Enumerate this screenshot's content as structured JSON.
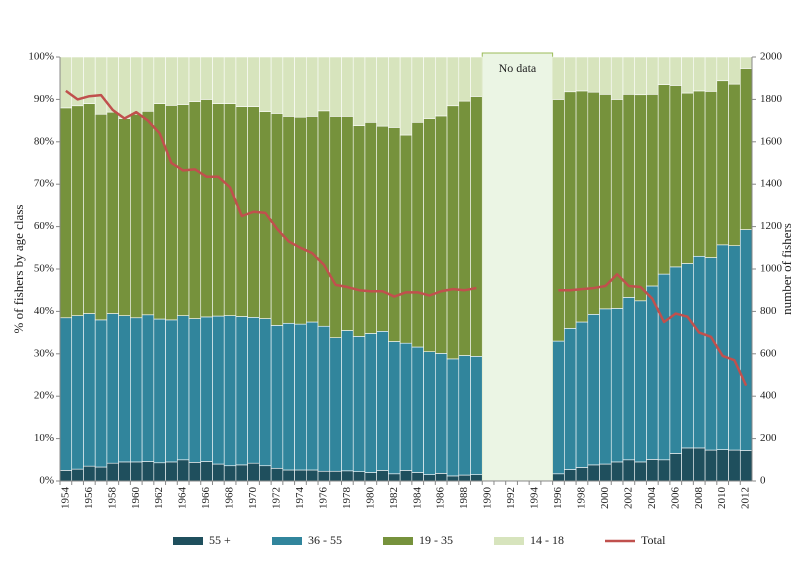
{
  "chart_data": {
    "type": "bar",
    "stacked": true,
    "annotation": "No data",
    "ylabel": "% of fishers by age class",
    "y2label": "number of fishers",
    "categories": [
      "1954",
      null,
      "1956",
      null,
      "1958",
      null,
      "1960",
      null,
      "1962",
      null,
      "1964",
      null,
      "1966",
      null,
      "1968",
      null,
      "1970",
      null,
      "1972",
      null,
      "1974",
      null,
      "1976",
      null,
      "1978",
      null,
      "1980",
      null,
      "1982",
      null,
      "1984",
      null,
      "1986",
      null,
      "1988",
      null,
      "1990",
      null,
      "1992",
      null,
      "1994",
      null,
      "1996",
      null,
      "1998",
      null,
      "2000",
      null,
      "2002",
      null,
      "2004",
      null,
      "2006",
      null,
      "2008",
      null,
      "2010",
      null,
      "2012"
    ],
    "series": [
      {
        "name": "55 +",
        "color": "#1f4f5d",
        "values": [
          2.5,
          2.8,
          3.5,
          3.3,
          4.2,
          4.5,
          4.5,
          4.6,
          4.3,
          4.5,
          5,
          4.4,
          4.6,
          4,
          3.6,
          3.8,
          4.2,
          3.6,
          3,
          2.6,
          2.6,
          2.6,
          2.3,
          2.3,
          2.4,
          2.2,
          2,
          2.5,
          1.7,
          2.5,
          2,
          1.5,
          1.8,
          1.2,
          1.4,
          1.5,
          null,
          null,
          null,
          null,
          null,
          null,
          1.7,
          2.7,
          3.2,
          3.8,
          4,
          4.5,
          5,
          4.5,
          5.1,
          5,
          6.5,
          7.8,
          7.8,
          7.3,
          7.4,
          7.3,
          7.2
        ]
      },
      {
        "name": "36 - 55",
        "color": "#31859c",
        "values": [
          36,
          36.2,
          36,
          34.7,
          35.3,
          34.5,
          34,
          34.6,
          33.9,
          33.5,
          34,
          33.9,
          34.1,
          34.9,
          35.4,
          35,
          34.4,
          34.7,
          33.7,
          34.6,
          34.4,
          34.9,
          34.2,
          31.5,
          33.1,
          31.9,
          32.8,
          32.8,
          31.2,
          30,
          29.6,
          29,
          28.3,
          27.6,
          28.2,
          27.9,
          null,
          null,
          null,
          null,
          null,
          null,
          31.3,
          33.3,
          34.3,
          35.5,
          36.6,
          36.2,
          38.3,
          38,
          40.9,
          43.8,
          44,
          43.5,
          45.2,
          45.4,
          48.3,
          48.2,
          52.1
        ]
      },
      {
        "name": "19 - 35",
        "color": "#76923c",
        "values": [
          49.5,
          49.5,
          49.5,
          48.5,
          47.5,
          46.5,
          48,
          48,
          50.8,
          50.6,
          49.8,
          51.2,
          51.3,
          50.1,
          50,
          49.5,
          49.7,
          48.8,
          50,
          48.8,
          48.8,
          48.5,
          50.8,
          52.2,
          50.5,
          49.7,
          49.8,
          48.4,
          50.5,
          49.1,
          53,
          55,
          56,
          59.7,
          60,
          61.3,
          null,
          null,
          null,
          null,
          null,
          null,
          57,
          55.8,
          54.5,
          52.4,
          50.6,
          49.3,
          47.9,
          48.6,
          45.2,
          44.7,
          42.8,
          40.2,
          39,
          39.2,
          38.7,
          38.1,
          38
        ]
      },
      {
        "name": "14 - 18",
        "color": "#d7e4bd",
        "values": [
          12,
          11.5,
          11,
          13.5,
          13,
          14.5,
          13.5,
          12.8,
          11,
          11.4,
          11.2,
          10.5,
          10,
          11,
          11,
          11.7,
          11.7,
          12.9,
          13.3,
          14,
          14.2,
          14,
          12.7,
          14,
          14,
          16.2,
          15.4,
          16.3,
          16.6,
          18.4,
          15.4,
          14.5,
          13.9,
          11.5,
          10.4,
          9.3,
          null,
          null,
          null,
          null,
          null,
          null,
          10,
          8.2,
          8,
          8.3,
          8.8,
          10,
          8.8,
          8.9,
          8.8,
          6.5,
          6.7,
          8.5,
          8,
          8.1,
          5.6,
          6.4,
          2.7
        ]
      },
      {
        "name": "Total",
        "type": "line",
        "axis": "y2",
        "color": "#c0504d",
        "values": [
          1840,
          1800,
          1815,
          1820,
          1750,
          1710,
          1740,
          1700,
          1640,
          1500,
          1465,
          1470,
          1435,
          1435,
          1385,
          1250,
          1270,
          1265,
          1190,
          1130,
          1100,
          1075,
          1020,
          925,
          915,
          900,
          895,
          895,
          870,
          890,
          890,
          875,
          895,
          905,
          900,
          910,
          null,
          null,
          null,
          null,
          null,
          null,
          900,
          900,
          905,
          910,
          920,
          975,
          920,
          915,
          860,
          750,
          790,
          775,
          700,
          680,
          590,
          570,
          450
        ]
      }
    ],
    "ylim": [
      0,
      100
    ],
    "yticks": [
      {
        "value": 0,
        "label": "0%"
      },
      {
        "value": 10,
        "label": "10%"
      },
      {
        "value": 20,
        "label": "20%"
      },
      {
        "value": 30,
        "label": "30%"
      },
      {
        "value": 40,
        "label": "40%"
      },
      {
        "value": 50,
        "label": "50%"
      },
      {
        "value": 60,
        "label": "60%"
      },
      {
        "value": 70,
        "label": "70%"
      },
      {
        "value": 80,
        "label": "80%"
      },
      {
        "value": 90,
        "label": "90%"
      },
      {
        "value": 100,
        "label": "100%"
      }
    ],
    "y2lim": [
      0,
      2000
    ],
    "y2ticks": [
      0,
      200,
      400,
      600,
      800,
      1000,
      1200,
      1400,
      1600,
      1800,
      2000
    ],
    "grid": false,
    "legend": "bottom"
  }
}
